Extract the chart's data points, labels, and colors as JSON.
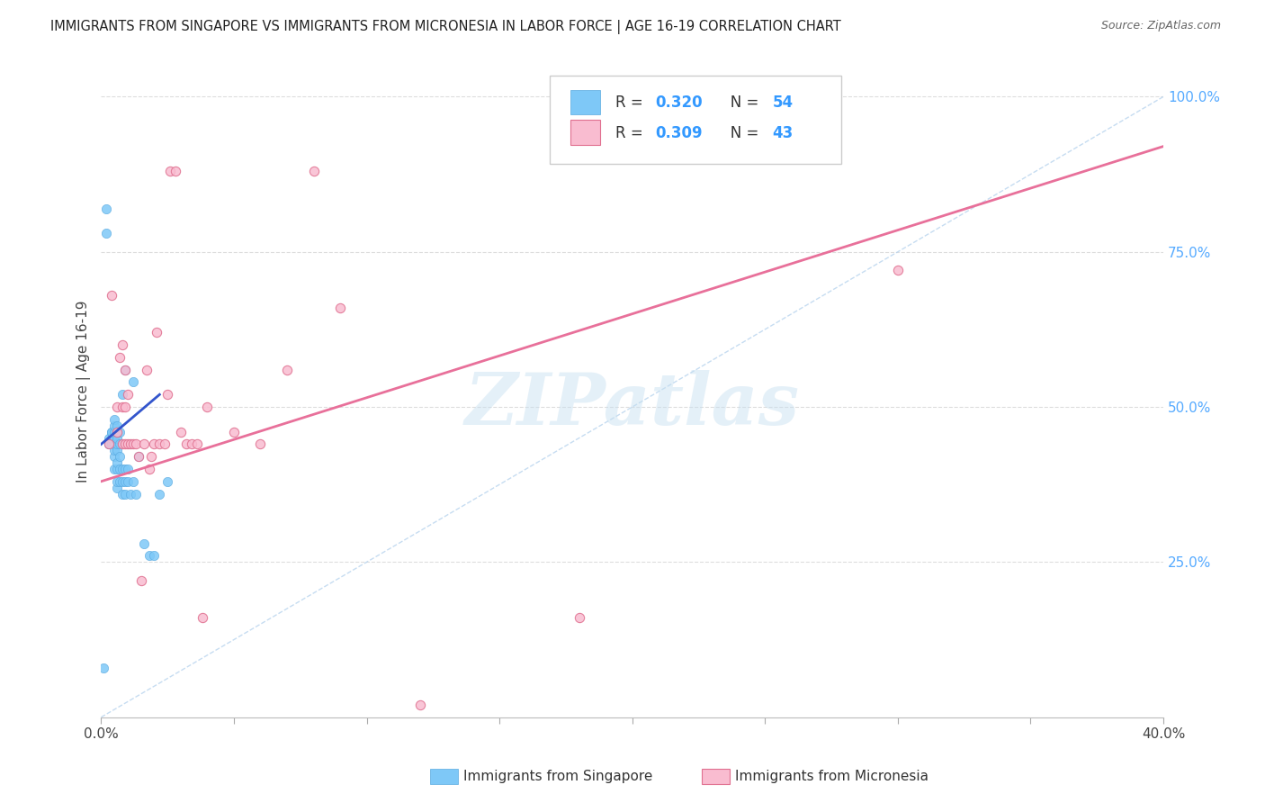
{
  "title": "IMMIGRANTS FROM SINGAPORE VS IMMIGRANTS FROM MICRONESIA IN LABOR FORCE | AGE 16-19 CORRELATION CHART",
  "source": "Source: ZipAtlas.com",
  "ylabel": "In Labor Force | Age 16-19",
  "xlim": [
    0.0,
    0.4
  ],
  "ylim": [
    0.0,
    1.05
  ],
  "ytick_vals": [
    0.0,
    0.25,
    0.5,
    0.75,
    1.0
  ],
  "ytick_labels": [
    "",
    "25.0%",
    "50.0%",
    "75.0%",
    "100.0%"
  ],
  "xtick_vals": [
    0.0,
    0.05,
    0.1,
    0.15,
    0.2,
    0.25,
    0.3,
    0.35,
    0.4
  ],
  "xtick_labels": [
    "0.0%",
    "",
    "",
    "",
    "",
    "",
    "",
    "",
    "40.0%"
  ],
  "singapore_color": "#7ec8f7",
  "singapore_edge": "#5aaae0",
  "micronesia_color": "#f9bcd0",
  "micronesia_edge": "#e07090",
  "singapore_R": 0.32,
  "singapore_N": 54,
  "micronesia_R": 0.309,
  "micronesia_N": 43,
  "singapore_line_color": "#3355cc",
  "micronesia_line_color": "#e8709a",
  "diagonal_line_color": "#b8d4ee",
  "watermark": "ZIPatlas",
  "singapore_x": [
    0.001,
    0.002,
    0.002,
    0.003,
    0.003,
    0.003,
    0.004,
    0.004,
    0.004,
    0.004,
    0.005,
    0.005,
    0.005,
    0.005,
    0.005,
    0.005,
    0.005,
    0.005,
    0.006,
    0.006,
    0.006,
    0.006,
    0.006,
    0.006,
    0.006,
    0.006,
    0.006,
    0.007,
    0.007,
    0.007,
    0.007,
    0.007,
    0.008,
    0.008,
    0.008,
    0.008,
    0.009,
    0.009,
    0.009,
    0.009,
    0.01,
    0.01,
    0.01,
    0.011,
    0.011,
    0.012,
    0.012,
    0.013,
    0.014,
    0.016,
    0.018,
    0.02,
    0.022,
    0.025
  ],
  "singapore_y": [
    0.08,
    0.82,
    0.78,
    0.45,
    0.44,
    0.44,
    0.44,
    0.45,
    0.46,
    0.46,
    0.4,
    0.42,
    0.43,
    0.44,
    0.45,
    0.46,
    0.47,
    0.48,
    0.37,
    0.38,
    0.4,
    0.41,
    0.43,
    0.44,
    0.45,
    0.46,
    0.47,
    0.38,
    0.4,
    0.42,
    0.44,
    0.46,
    0.36,
    0.38,
    0.4,
    0.52,
    0.36,
    0.38,
    0.4,
    0.56,
    0.38,
    0.4,
    0.44,
    0.36,
    0.44,
    0.38,
    0.54,
    0.36,
    0.42,
    0.28,
    0.26,
    0.26,
    0.36,
    0.38
  ],
  "micronesia_x": [
    0.003,
    0.004,
    0.006,
    0.006,
    0.007,
    0.008,
    0.008,
    0.008,
    0.009,
    0.009,
    0.009,
    0.01,
    0.01,
    0.011,
    0.012,
    0.013,
    0.014,
    0.015,
    0.016,
    0.017,
    0.018,
    0.019,
    0.02,
    0.021,
    0.022,
    0.024,
    0.025,
    0.026,
    0.028,
    0.03,
    0.032,
    0.034,
    0.036,
    0.038,
    0.04,
    0.05,
    0.06,
    0.07,
    0.08,
    0.09,
    0.12,
    0.18,
    0.3
  ],
  "micronesia_y": [
    0.44,
    0.68,
    0.46,
    0.5,
    0.58,
    0.44,
    0.5,
    0.6,
    0.44,
    0.5,
    0.56,
    0.44,
    0.52,
    0.44,
    0.44,
    0.44,
    0.42,
    0.22,
    0.44,
    0.56,
    0.4,
    0.42,
    0.44,
    0.62,
    0.44,
    0.44,
    0.52,
    0.88,
    0.88,
    0.46,
    0.44,
    0.44,
    0.44,
    0.16,
    0.5,
    0.46,
    0.44,
    0.56,
    0.88,
    0.66,
    0.02,
    0.16,
    0.72
  ],
  "sg_line_x0": 0.0,
  "sg_line_x1": 0.022,
  "sg_line_y0": 0.44,
  "sg_line_y1": 0.52,
  "mc_line_x0": 0.0,
  "mc_line_x1": 0.4,
  "mc_line_y0": 0.38,
  "mc_line_y1": 0.92
}
